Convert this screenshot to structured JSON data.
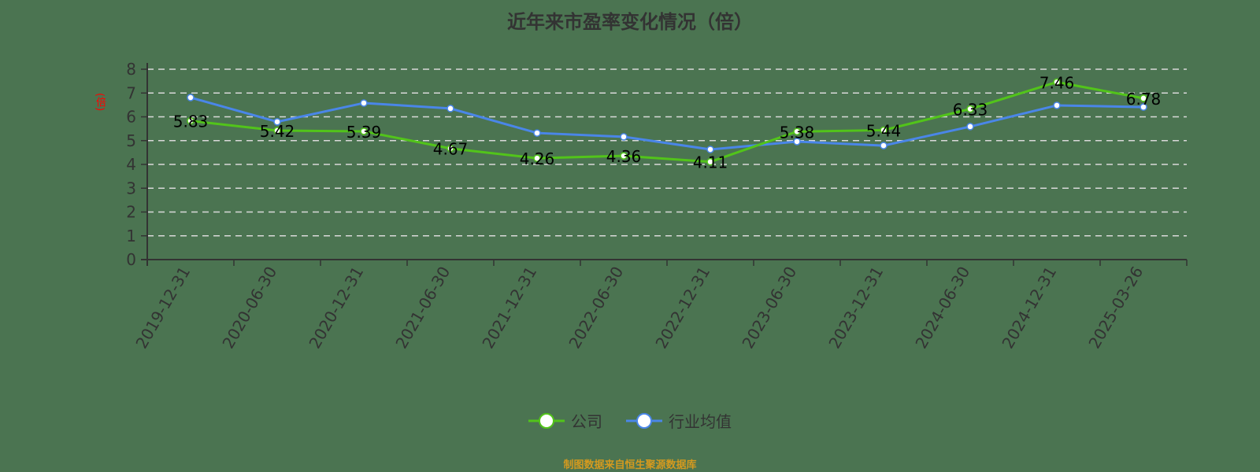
{
  "title": "近年来市盈率变化情况（倍）",
  "y_axis_label": "(倍)",
  "legend": [
    {
      "name": "公司",
      "color": "#52c41a"
    },
    {
      "name": "行业均值",
      "color": "#4a86e8"
    }
  ],
  "footer": "制图数据来自恒生聚源数据库",
  "chart_data": {
    "type": "line",
    "title": "近年来市盈率变化情况（倍）",
    "xlabel": "",
    "ylabel": "(倍)",
    "ylim": [
      0,
      8
    ],
    "yticks": [
      0,
      1,
      2,
      3,
      4,
      5,
      6,
      7,
      8
    ],
    "grid": "horizontal dashed",
    "legend_position": "bottom",
    "categories": [
      "2019-12-31",
      "2020-06-30",
      "2020-12-31",
      "2021-06-30",
      "2021-12-31",
      "2022-06-30",
      "2022-12-31",
      "2023-06-30",
      "2023-12-31",
      "2024-06-30",
      "2024-12-31",
      "2025-03-26"
    ],
    "series": [
      {
        "name": "公司",
        "color": "#52c41a",
        "labels_shown": true,
        "values": [
          5.83,
          5.42,
          5.39,
          4.67,
          4.26,
          4.36,
          4.11,
          5.38,
          5.44,
          6.33,
          7.46,
          6.78
        ]
      },
      {
        "name": "行业均值",
        "color": "#4a86e8",
        "labels_shown": false,
        "values": [
          6.81,
          5.79,
          6.58,
          6.35,
          5.32,
          5.16,
          4.63,
          4.96,
          4.79,
          5.59,
          6.48,
          6.41
        ]
      }
    ]
  }
}
